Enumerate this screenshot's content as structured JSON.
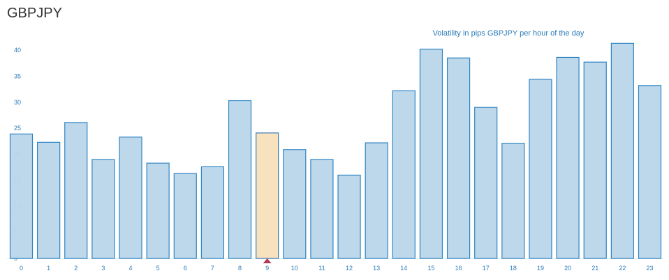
{
  "header": {
    "title": "GBPJPY"
  },
  "chart_data": {
    "type": "bar",
    "title": "Volatility in pips GBPJPY per hour of the day",
    "xlabel": "",
    "ylabel": "",
    "categories": [
      "0",
      "1",
      "2",
      "3",
      "4",
      "5",
      "6",
      "7",
      "8",
      "9",
      "10",
      "11",
      "12",
      "13",
      "14",
      "15",
      "16",
      "17",
      "18",
      "19",
      "20",
      "21",
      "22",
      "23"
    ],
    "values": [
      23.9,
      22.3,
      26.1,
      19.0,
      23.3,
      18.3,
      16.3,
      17.6,
      30.3,
      24.1,
      20.9,
      19.0,
      16.0,
      22.2,
      32.2,
      40.2,
      38.5,
      29.0,
      22.1,
      34.4,
      38.6,
      37.7,
      41.3,
      33.2
    ],
    "highlight_index": 9,
    "ylim": [
      0,
      40
    ],
    "yticks": [
      0,
      5,
      10,
      15,
      20,
      25,
      30,
      35,
      40
    ],
    "grid": false,
    "colors": {
      "bar_fill": "#bbd6ea",
      "bar_stroke": "#2f84c2",
      "highlight_fill": "#f8e1bd",
      "highlight_stroke": "#3a7fb5",
      "marker": "#b03a52"
    }
  }
}
